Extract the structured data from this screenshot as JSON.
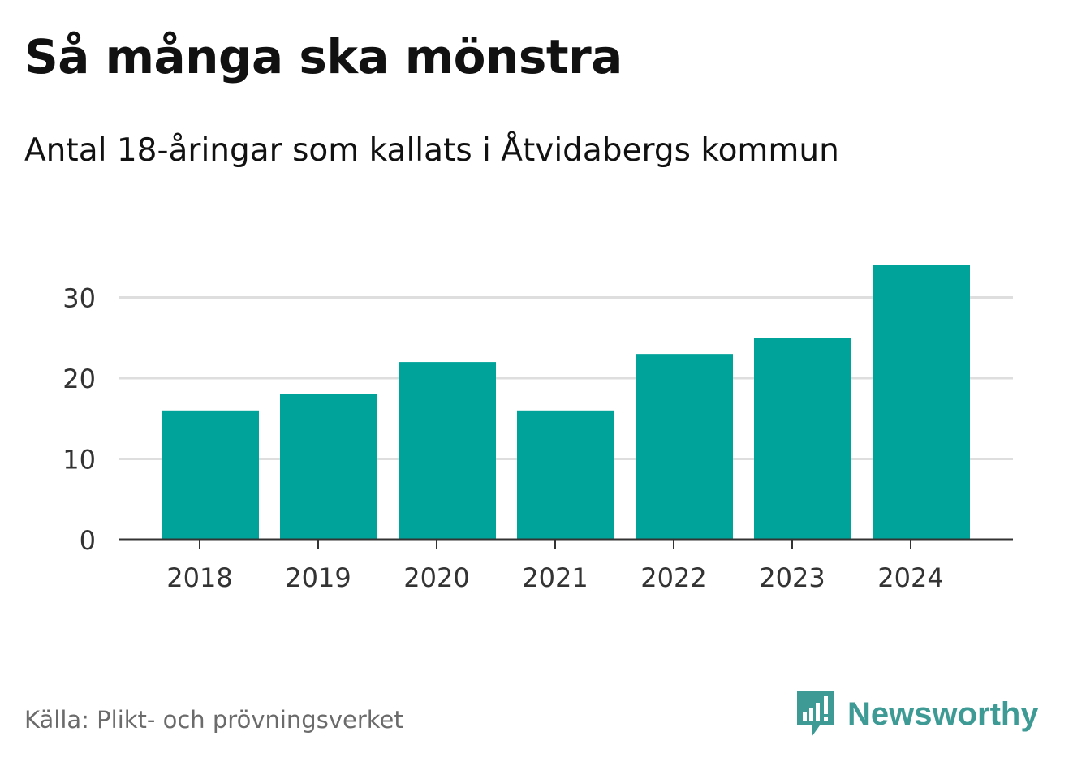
{
  "title": "Så många ska mönstra",
  "subtitle": "Antal 18-åringar som kallats i Åtvidabergs kommun",
  "source": "Källa: Plikt- och prövningsverket",
  "brand": {
    "name": "Newsworthy",
    "icon": "newsworthy-logo-icon",
    "color": "#3d9a94"
  },
  "colors": {
    "bar": "#00a39a",
    "grid": "#dedede",
    "axis": "#333333",
    "tick_text": "#333333"
  },
  "chart_data": {
    "type": "bar",
    "title": "Så många ska mönstra",
    "subtitle": "Antal 18-åringar som kallats i Åtvidabergs kommun",
    "xlabel": "",
    "ylabel": "",
    "categories": [
      "2018",
      "2019",
      "2020",
      "2021",
      "2022",
      "2023",
      "2024"
    ],
    "values": [
      16,
      18,
      22,
      16,
      23,
      25,
      34
    ],
    "ylim": [
      0,
      34
    ],
    "yticks": [
      0,
      10,
      20,
      30
    ],
    "grid": true,
    "legend": "none"
  }
}
